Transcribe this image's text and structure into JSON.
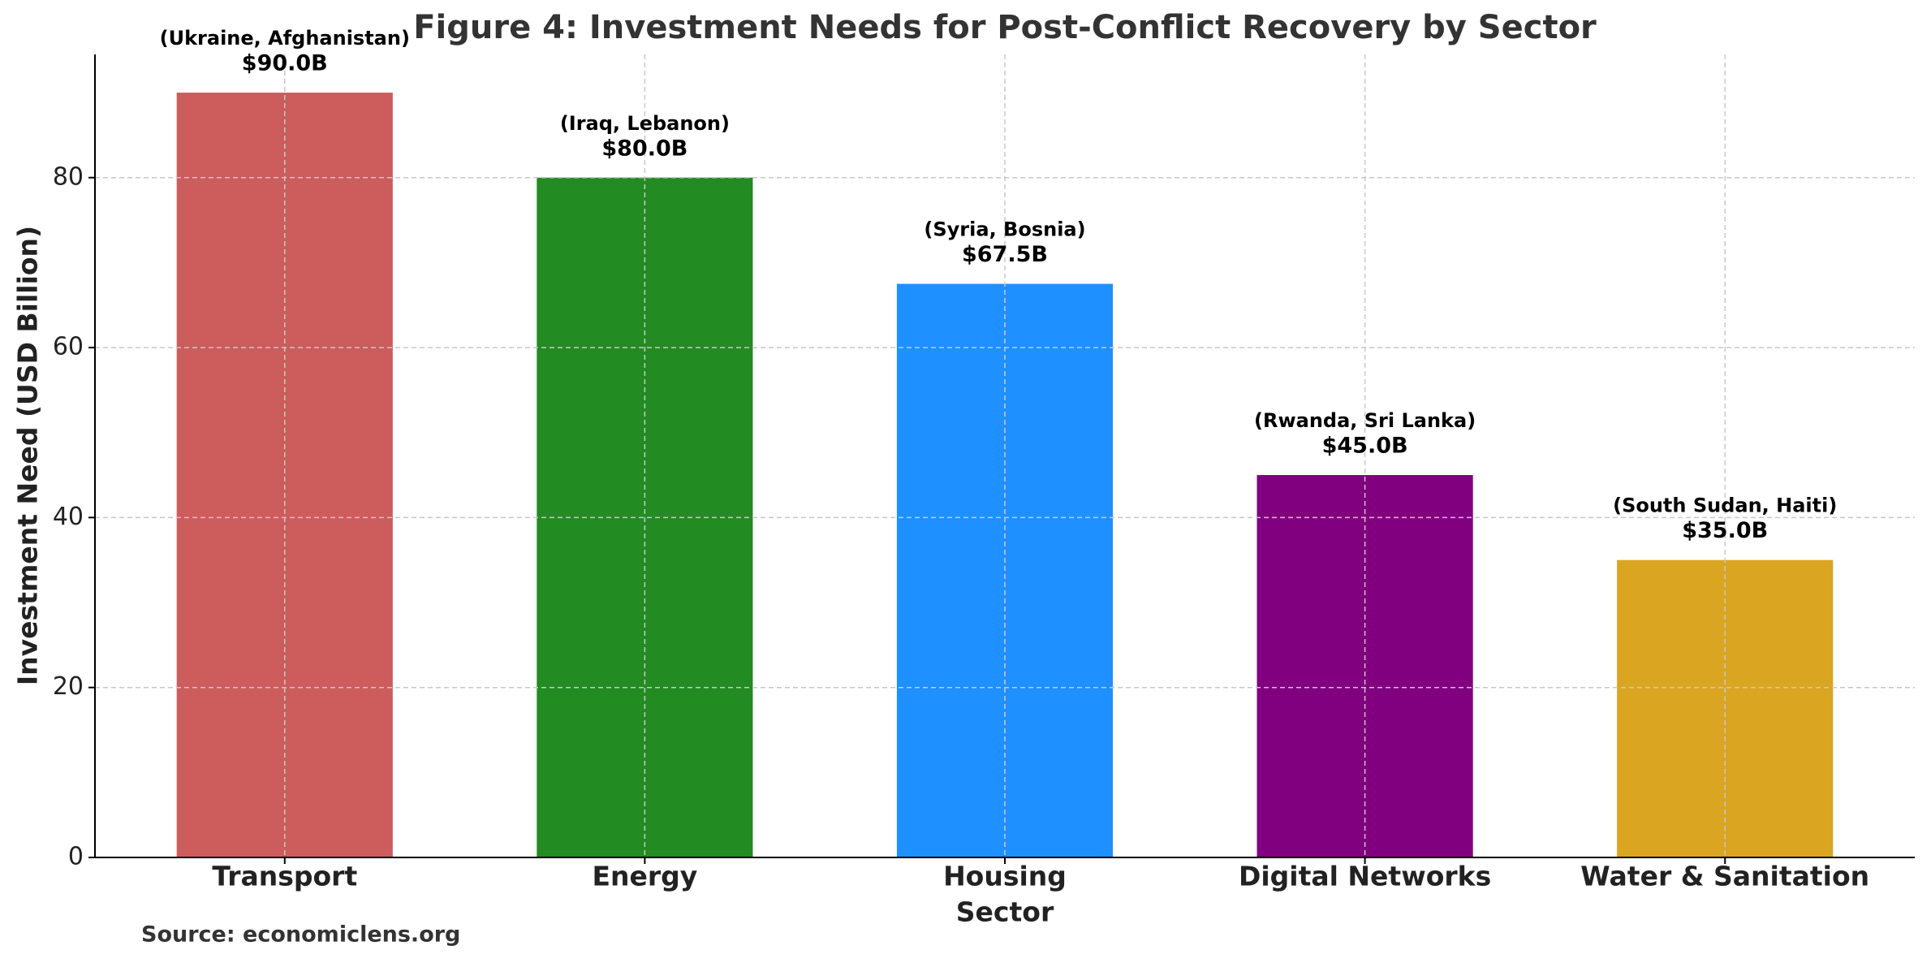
{
  "chart_data": {
    "type": "bar",
    "title": "Figure 4: Investment Needs for Post-Conflict Recovery by Sector",
    "xlabel": "Sector",
    "ylabel": "Investment Need (USD Billion)",
    "source": "Source: economiclens.org",
    "categories": [
      "Transport",
      "Energy",
      "Housing",
      "Digital Networks",
      "Water & Sanitation"
    ],
    "values": [
      90.0,
      80.0,
      67.5,
      45.0,
      35.0
    ],
    "value_labels": [
      "$90.0B",
      "$80.0B",
      "$67.5B",
      "$45.0B",
      "$35.0B"
    ],
    "annotations": [
      "(Ukraine, Afghanistan)",
      "(Iraq, Lebanon)",
      "(Syria, Bosnia)",
      "(Rwanda, Sri Lanka)",
      "(South Sudan, Haiti)"
    ],
    "colors": [
      "#cd5c5c",
      "#228b22",
      "#1e90ff",
      "#800080",
      "#daa520"
    ],
    "ylim": [
      0,
      94.5
    ],
    "yticks": [
      0,
      20,
      40,
      60,
      80
    ],
    "grid": true
  }
}
